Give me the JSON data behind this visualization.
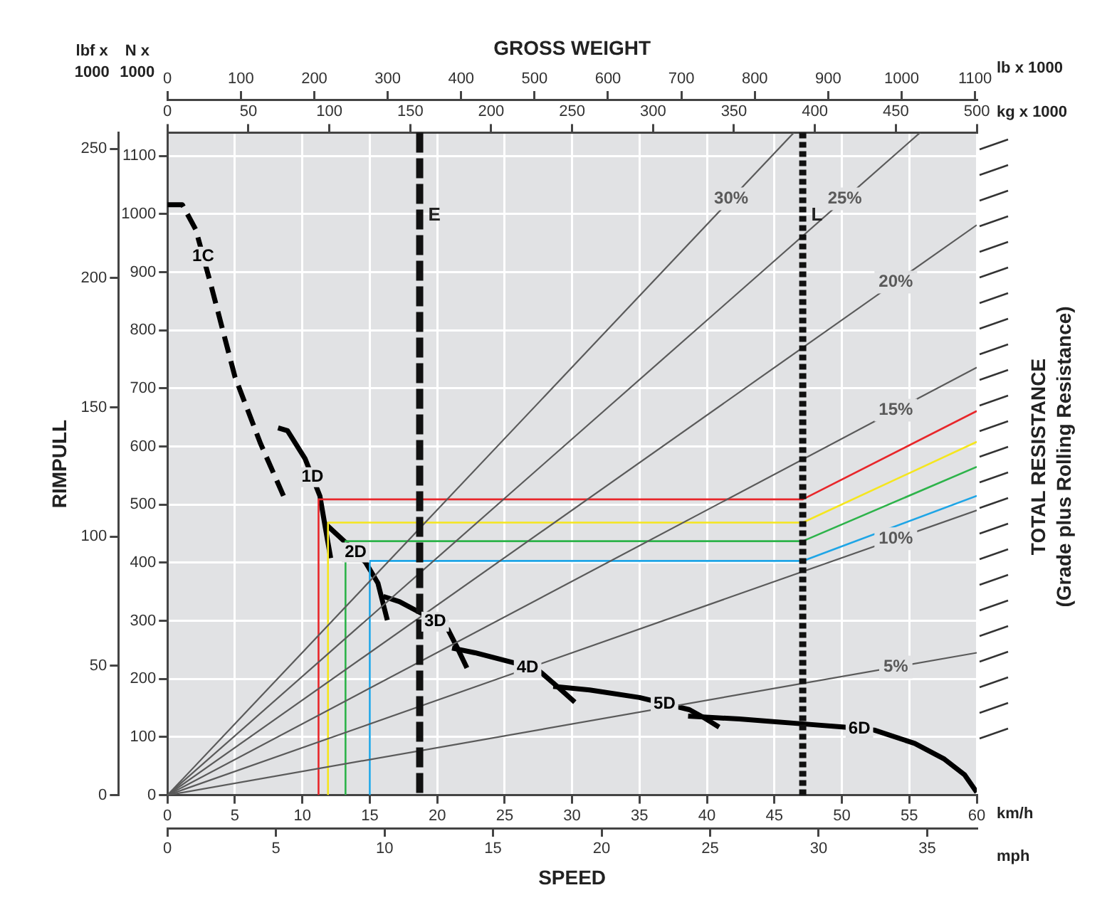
{
  "chart_data": {
    "type": "line",
    "x2label": "GROSS WEIGHT",
    "xlabel": "SPEED",
    "y2label": "RIMPULL",
    "xlim": [
      0,
      60
    ],
    "xticks": [
      0,
      5,
      10,
      15,
      20,
      25,
      30,
      35,
      40,
      45,
      50,
      55,
      60
    ],
    "x2lim": [
      0,
      500
    ],
    "x2ticks": [
      0,
      50,
      100,
      150,
      200,
      250,
      300,
      350,
      400,
      450,
      500
    ],
    "ylim": [
      0,
      1140
    ],
    "yticks": [
      0,
      100,
      200,
      300,
      400,
      500,
      600,
      700,
      800,
      900,
      1000,
      1100
    ],
    "y2lim": [
      0,
      256.3
    ],
    "y2ticks": [
      0,
      50,
      100,
      150,
      200,
      250
    ],
    "grid": true,
    "legend": false,
    "annotations": [
      "lbf x 1000",
      "N x 1000",
      "lb x 1000",
      "kg x 1000",
      "km/h",
      "mph",
      "TOTAL RESISTANCE (Grade plus Rolling Resistance)",
      "0",
      "5",
      "10",
      "15",
      "20",
      "25",
      "30",
      "35",
      "0",
      "100",
      "200",
      "300",
      "400",
      "500",
      "600",
      "700",
      "800",
      "900",
      "1000",
      "1100"
    ],
    "ref_lines": [
      {
        "axis": "x",
        "value": 18.7,
        "label": "E",
        "color": "#111111",
        "line_style": "dashed"
      },
      {
        "axis": "x",
        "value": 47.1,
        "label": "L",
        "color": "#111111",
        "line_style": "dotted"
      }
    ],
    "series": [
      {
        "name": "5%",
        "axis": "x2",
        "color": "#5a5a5a",
        "x": [
          0,
          500
        ],
        "values": [
          0,
          245
        ]
      },
      {
        "name": "10%",
        "axis": "x2",
        "color": "#5a5a5a",
        "x": [
          0,
          500
        ],
        "values": [
          0,
          490
        ]
      },
      {
        "name": "15%",
        "axis": "x2",
        "color": "#5a5a5a",
        "x": [
          0,
          500
        ],
        "values": [
          0,
          736
        ]
      },
      {
        "name": "20%",
        "axis": "x2",
        "color": "#5a5a5a",
        "x": [
          0,
          500
        ],
        "values": [
          0,
          981
        ]
      },
      {
        "name": "25%",
        "axis": "x2",
        "color": "#5a5a5a",
        "x": [
          0,
          465
        ],
        "values": [
          0,
          1140
        ]
      },
      {
        "name": "30%",
        "axis": "x2",
        "color": "#5a5a5a",
        "x": [
          0,
          387
        ],
        "values": [
          0,
          1140
        ]
      },
      {
        "color": "#e8262a",
        "x": [
          11.2,
          11.2,
          47.1,
          60
        ],
        "values": [
          0,
          509,
          509,
          661
        ]
      },
      {
        "color": "#f5e61e",
        "x": [
          11.9,
          11.9,
          47.1,
          60
        ],
        "values": [
          0,
          469,
          469,
          608
        ]
      },
      {
        "color": "#2db34a",
        "x": [
          13.2,
          13.2,
          47.1,
          60
        ],
        "values": [
          0,
          437,
          437,
          565
        ]
      },
      {
        "color": "#1ea5e6",
        "x": [
          15.0,
          15.0,
          47.1,
          60
        ],
        "values": [
          0,
          403,
          403,
          515
        ]
      },
      {
        "name": "1C",
        "line_style": "dashed",
        "color": "#000000",
        "x": [
          0,
          1.1,
          2.1,
          3.2,
          5.0,
          6.9,
          8.6
        ],
        "values": [
          1016,
          1016,
          973,
          880,
          720,
          605,
          515
        ]
      },
      {
        "name": "1D",
        "color": "#000000",
        "x": [
          8.2,
          8.9,
          10.2,
          11.3,
          11.7,
          12.1
        ],
        "values": [
          632,
          627,
          579,
          515,
          461,
          408
        ]
      },
      {
        "name": "2D",
        "color": "#000000",
        "x": [
          11.7,
          13.2,
          14.7,
          15.6,
          16.3
        ],
        "values": [
          467,
          435,
          400,
          365,
          301
        ]
      },
      {
        "name": "3D",
        "color": "#000000",
        "x": [
          16.0,
          17.2,
          18.9,
          20.8,
          21.5,
          22.2
        ],
        "values": [
          342,
          333,
          312,
          285,
          253,
          219
        ]
      },
      {
        "name": "4D",
        "color": "#000000",
        "x": [
          21.1,
          22.8,
          25.8,
          27.6,
          28.9,
          30.2
        ],
        "values": [
          253,
          245,
          227,
          213,
          187,
          160
        ]
      },
      {
        "name": "5D",
        "color": "#000000",
        "x": [
          28.6,
          31.3,
          35.0,
          38.7,
          39.8,
          40.9
        ],
        "values": [
          187,
          181,
          168,
          147,
          133,
          117
        ]
      },
      {
        "name": "6D",
        "color": "#000000",
        "x": [
          38.6,
          42.4,
          46.9,
          50.2,
          52.4,
          55.4,
          57.6,
          59.1,
          60
        ],
        "values": [
          136,
          131,
          123,
          117,
          112,
          89,
          62,
          35,
          5
        ]
      }
    ]
  }
}
